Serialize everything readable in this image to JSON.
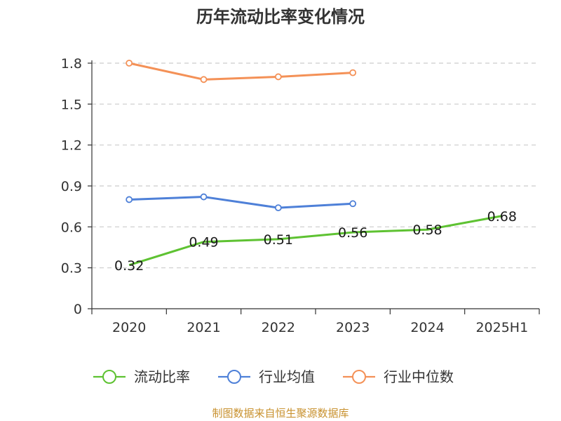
{
  "chart_data": {
    "type": "line",
    "title": "历年流动比率变化情况",
    "categories": [
      "2020",
      "2021",
      "2022",
      "2023",
      "2024",
      "2025H1"
    ],
    "ylim": [
      0,
      1.8
    ],
    "yticks": [
      0,
      0.3,
      0.6,
      0.9,
      1.2,
      1.5,
      1.8
    ],
    "ytick_labels": [
      "0",
      "0.3",
      "0.6",
      "0.9",
      "1.2",
      "1.5",
      "1.8"
    ],
    "grid": true,
    "legend_position": "bottom",
    "series": [
      {
        "name": "流动比率",
        "color": "#5ec232",
        "values": [
          0.32,
          0.49,
          0.51,
          0.56,
          0.58,
          0.68
        ],
        "labels": [
          "0.32",
          "0.49",
          "0.51",
          "0.56",
          "0.58",
          "0.68"
        ],
        "show_markers": false
      },
      {
        "name": "行业均值",
        "color": "#4e80d8",
        "values": [
          0.8,
          0.82,
          0.74,
          0.77,
          null,
          null
        ],
        "show_markers": true
      },
      {
        "name": "行业中位数",
        "color": "#f49157",
        "values": [
          1.8,
          1.68,
          1.7,
          1.73,
          null,
          null
        ],
        "show_markers": true
      }
    ]
  },
  "source": "制图数据来自恒生聚源数据库"
}
